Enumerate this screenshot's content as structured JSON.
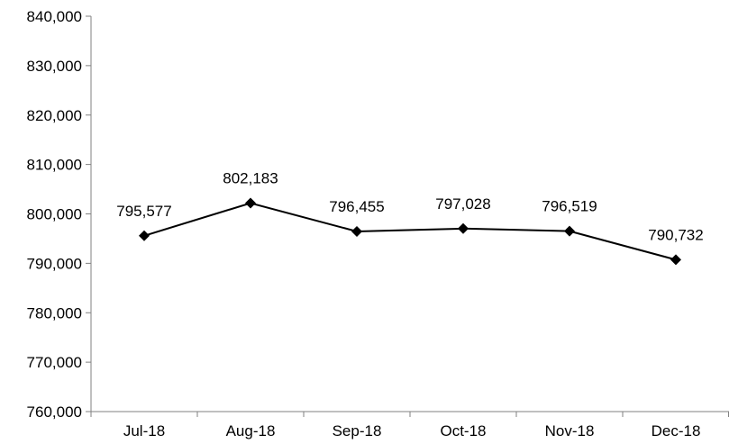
{
  "chart_data": {
    "type": "line",
    "title": "",
    "xlabel": "",
    "ylabel": "",
    "categories": [
      "Jul-18",
      "Aug-18",
      "Sep-18",
      "Oct-18",
      "Nov-18",
      "Dec-18"
    ],
    "series": [
      {
        "values": [
          795577,
          802183,
          796455,
          797028,
          796519,
          790732
        ],
        "labels": [
          "795,577",
          "802,183",
          "796,455",
          "797,028",
          "796,519",
          "790,732"
        ],
        "color": "#000000",
        "marker": "diamond"
      }
    ],
    "ylim": [
      760000,
      840000
    ],
    "yticks": [
      760000,
      770000,
      780000,
      790000,
      800000,
      810000,
      820000,
      830000,
      840000
    ],
    "ytick_labels": [
      "760,000",
      "770,000",
      "780,000",
      "790,000",
      "800,000",
      "810,000",
      "820,000",
      "830,000",
      "840,000"
    ],
    "grid": false,
    "legend": "none"
  }
}
